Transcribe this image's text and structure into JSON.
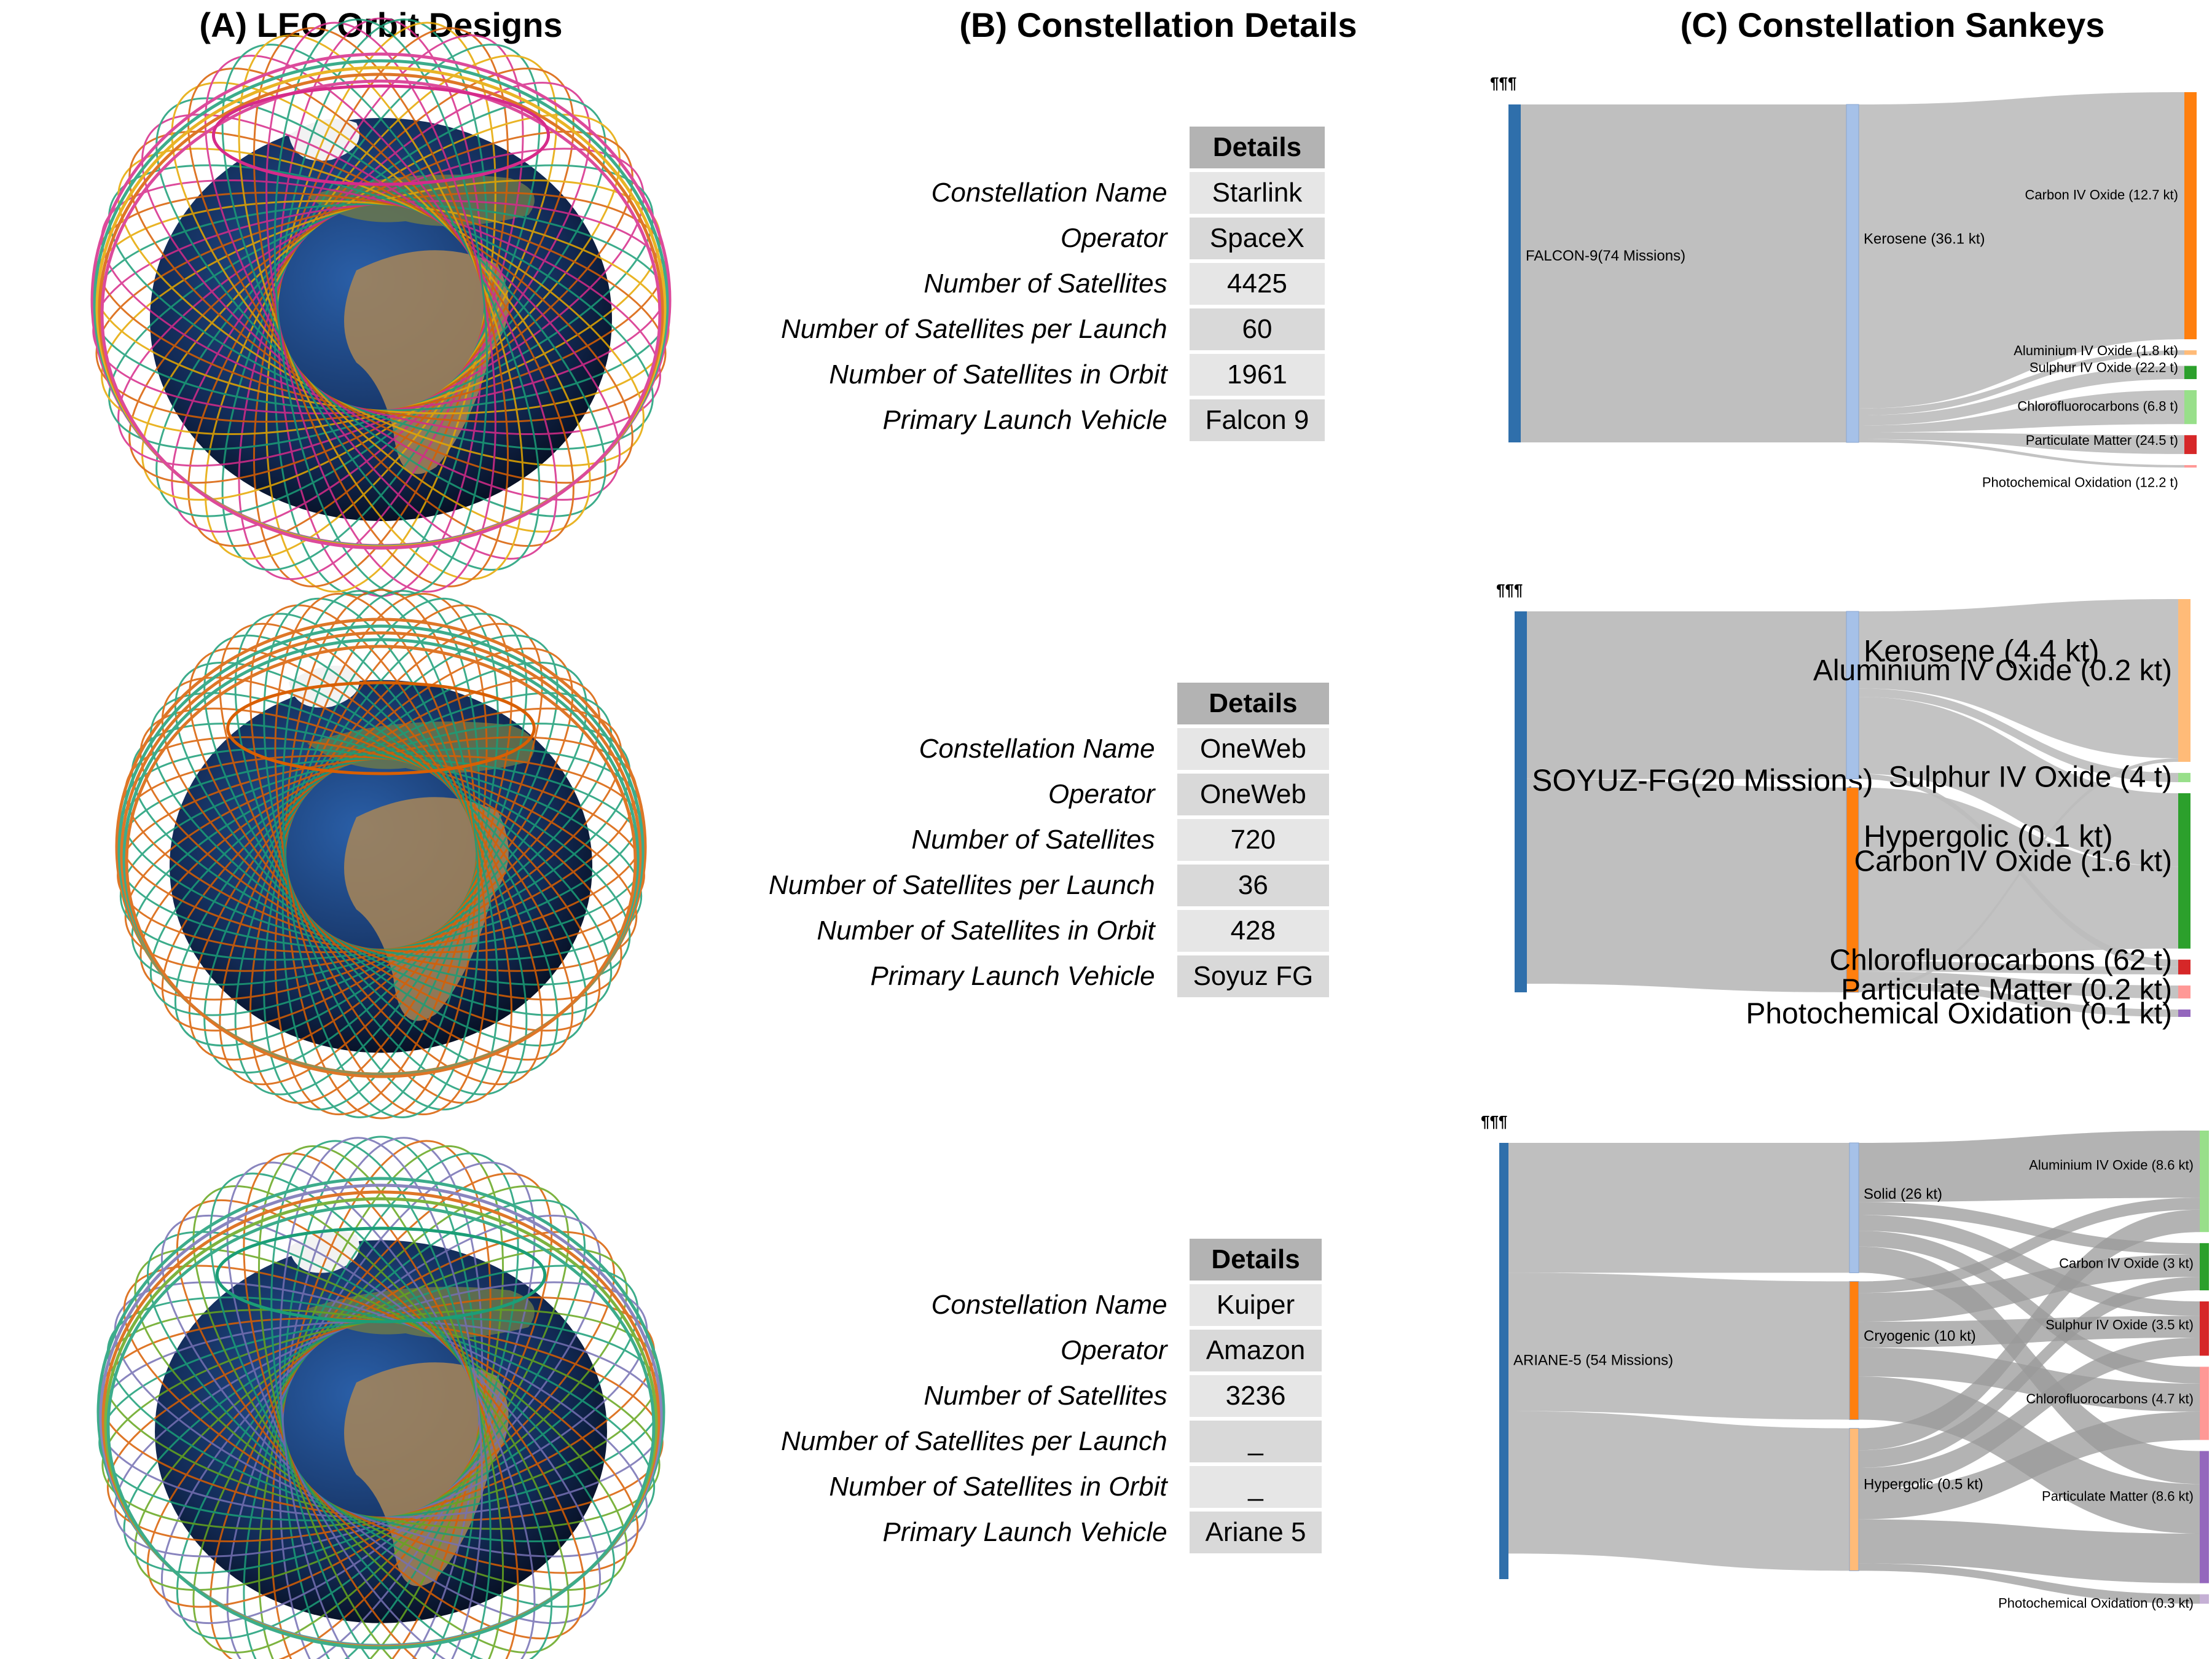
{
  "panels": {
    "a": "(A) LEO Orbit Designs",
    "b": "(B) Constellation Details",
    "c": "(C) Constellation Sankeys"
  },
  "details_header": "Details",
  "detail_labels": [
    "Constellation Name",
    "Operator",
    "Number of Satellites",
    "Number of Satellites per Launch",
    "Number of Satellites in Orbit",
    "Primary Launch Vehicle"
  ],
  "constellations": [
    {
      "values": [
        "Starlink",
        "SpaceX",
        "4425",
        "60",
        "1961",
        "Falcon 9"
      ],
      "orbit_colors": [
        "#d62b8a",
        "#1b9e77",
        "#e6a700",
        "#d95f02"
      ],
      "sankey_marker": "¶¶¶",
      "sankey": {
        "source": {
          "label": "FALCON-9(74 Missions)",
          "color": "#2f6fab"
        },
        "fuels": [
          {
            "label": "Kerosene (36.1 kt)",
            "color": "#a6c1e8"
          }
        ],
        "outputs": [
          {
            "label": "Carbon IV Oxide (12.7 kt)",
            "color": "#ff7f0e"
          },
          {
            "label": "Aluminium IV Oxide (1.8 kt)",
            "color": "#ffbb78"
          },
          {
            "label": "Sulphur IV Oxide (22.2 t)",
            "color": "#2ca02c"
          },
          {
            "label": "Chlorofluorocarbons (6.8 t)",
            "color": "#98df8a"
          },
          {
            "label": "Particulate Matter (24.5 t)",
            "color": "#d62728"
          },
          {
            "label": "Photochemical Oxidation (12.2 t)",
            "color": "#ff9896"
          }
        ]
      }
    },
    {
      "values": [
        "OneWeb",
        "OneWeb",
        "720",
        "36",
        "428",
        "Soyuz  FG"
      ],
      "orbit_colors": [
        "#d95f02",
        "#1b9e77"
      ],
      "sankey_marker": "¶¶¶",
      "sankey": {
        "source": {
          "label": "SOYUZ-FG(20 Missions)",
          "color": "#2f6fab"
        },
        "fuels": [
          {
            "label": "Kerosene (4.4 kt)",
            "color": "#a6c1e8"
          },
          {
            "label": "Hypergolic (0.1 kt)",
            "color": "#ff7f0e"
          }
        ],
        "outputs": [
          {
            "label": "Aluminium IV Oxide (0.2 kt)",
            "color": "#ffbb78"
          },
          {
            "label": "Sulphur IV Oxide (4 t)",
            "color": "#98df8a"
          },
          {
            "label": "Carbon IV Oxide (1.6 kt)",
            "color": "#2ca02c"
          },
          {
            "label": "Chlorofluorocarbons (62 t)",
            "color": "#d62728"
          },
          {
            "label": "Particulate Matter (0.2 kt)",
            "color": "#ff9896"
          },
          {
            "label": "Photochemical Oxidation (0.1 kt)",
            "color": "#9467bd"
          }
        ]
      }
    },
    {
      "values": [
        "Kuiper",
        "Amazon",
        "3236",
        "_",
        "_",
        "Ariane 5"
      ],
      "orbit_colors": [
        "#1b9e77",
        "#7570b3",
        "#d95f02",
        "#66a61e"
      ],
      "sankey_marker": "¶¶¶",
      "sankey": {
        "source": {
          "label": "ARIANE-5 (54 Missions)",
          "color": "#2f6fab"
        },
        "fuels": [
          {
            "label": "Solid (26 kt)",
            "color": "#a6c1e8"
          },
          {
            "label": "Cryogenic (10 kt)",
            "color": "#ff7f0e"
          },
          {
            "label": "Hypergolic (0.5 kt)",
            "color": "#ffbb78"
          }
        ],
        "outputs": [
          {
            "label": "Aluminium IV Oxide (8.6 kt)",
            "color": "#98df8a"
          },
          {
            "label": "Carbon IV Oxide (3 kt)",
            "color": "#2ca02c"
          },
          {
            "label": "Sulphur IV Oxide (3.5 kt)",
            "color": "#d62728"
          },
          {
            "label": "Chlorofluorocarbons (4.7 kt)",
            "color": "#ff9896"
          },
          {
            "label": "Particulate Matter (8.6 kt)",
            "color": "#9467bd"
          },
          {
            "label": "Photochemical Oxidation (0.3 kt)",
            "color": "#c5b0d5"
          }
        ]
      }
    }
  ]
}
